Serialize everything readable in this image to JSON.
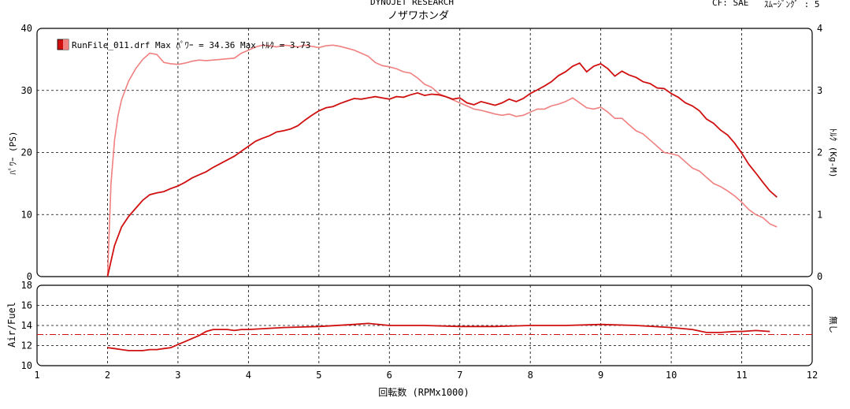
{
  "header": {
    "title": "DYNOJET  RESEARCH",
    "subtitle": "ノザワホンダ",
    "cf": "CF: SAE",
    "smoothing": "ｽﾑｰｼﾞﾝｸﾞ : 5"
  },
  "colors": {
    "power": "#d01010",
    "torque": "#f08080",
    "afr": "#d01010",
    "afr_ref": "#d01010",
    "frame": "#000000",
    "grid": "#000000"
  },
  "chart_data": [
    {
      "type": "line",
      "legend": "RunFile_011.drf Max ﾊﾟﾜｰ = 34.36  Max ﾄﾙｸ = 3.73",
      "xlabel": "回転数 (RPMx1000)",
      "ylabel": "ﾊﾟﾜｰ (PS)",
      "y2label": "ﾄﾙｸ (Kg-M)",
      "xlim": [
        1,
        12
      ],
      "ylim": [
        0,
        40
      ],
      "y2lim": [
        0,
        4
      ],
      "yticks": [
        "0",
        "10",
        "20",
        "30",
        "40"
      ],
      "y2ticks": [
        "0",
        "1",
        "2",
        "3",
        "4"
      ],
      "grid": true,
      "legend_position": "top-left",
      "series": [
        {
          "axis": "left",
          "x": [
            2.0,
            2.05,
            2.1,
            2.2,
            2.3,
            2.4,
            2.5,
            2.6,
            2.7,
            2.8,
            2.9,
            3.0,
            3.1,
            3.2,
            3.3,
            3.4,
            3.5,
            3.6,
            3.7,
            3.8,
            3.9,
            4.0,
            4.1,
            4.2,
            4.3,
            4.4,
            4.5,
            4.6,
            4.7,
            4.8,
            4.9,
            5.0,
            5.1,
            5.2,
            5.3,
            5.4,
            5.5,
            5.6,
            5.7,
            5.8,
            5.9,
            6.0,
            6.1,
            6.2,
            6.3,
            6.4,
            6.5,
            6.6,
            6.7,
            6.8,
            6.9,
            7.0,
            7.1,
            7.2,
            7.3,
            7.4,
            7.5,
            7.6,
            7.7,
            7.8,
            7.9,
            8.0,
            8.1,
            8.2,
            8.3,
            8.4,
            8.5,
            8.6,
            8.7,
            8.8,
            8.9,
            9.0,
            9.1,
            9.2,
            9.3,
            9.4,
            9.5,
            9.6,
            9.7,
            9.8,
            9.9,
            10.0,
            10.1,
            10.2,
            10.3,
            10.4,
            10.5,
            10.6,
            10.7,
            10.8,
            10.9,
            11.0,
            11.1,
            11.2,
            11.3,
            11.4,
            11.5
          ],
          "y": [
            0,
            2.5,
            5.0,
            8.0,
            9.7,
            11.0,
            12.3,
            13.2,
            13.5,
            13.7,
            14.2,
            14.6,
            15.2,
            15.9,
            16.4,
            16.9,
            17.6,
            18.2,
            18.8,
            19.4,
            20.2,
            21.0,
            21.8,
            22.3,
            22.7,
            23.3,
            23.5,
            23.8,
            24.3,
            25.2,
            26.0,
            26.7,
            27.2,
            27.4,
            27.9,
            28.3,
            28.7,
            28.6,
            28.8,
            29.0,
            28.8,
            28.6,
            29.0,
            28.9,
            29.3,
            29.6,
            29.2,
            29.4,
            29.3,
            29.0,
            28.6,
            28.8,
            28.0,
            27.7,
            28.2,
            27.9,
            27.6,
            28.0,
            28.6,
            28.2,
            28.7,
            29.5,
            30.1,
            30.7,
            31.4,
            32.4,
            33.0,
            33.9,
            34.4,
            33.0,
            33.9,
            34.3,
            33.5,
            32.3,
            33.1,
            32.5,
            32.1,
            31.4,
            31.1,
            30.4,
            30.3,
            29.5,
            28.9,
            28.0,
            27.5,
            26.7,
            25.4,
            24.7,
            23.6,
            22.8,
            21.5,
            19.9,
            18.1,
            16.7,
            15.2,
            13.8,
            12.8
          ]
        },
        {
          "axis": "right",
          "x": [
            2.0,
            2.05,
            2.1,
            2.15,
            2.2,
            2.3,
            2.4,
            2.5,
            2.6,
            2.7,
            2.8,
            2.9,
            3.0,
            3.1,
            3.2,
            3.3,
            3.4,
            3.5,
            3.6,
            3.7,
            3.8,
            3.9,
            4.0,
            4.1,
            4.2,
            4.3,
            4.4,
            4.5,
            4.6,
            4.7,
            4.8,
            4.9,
            5.0,
            5.1,
            5.2,
            5.3,
            5.4,
            5.5,
            5.6,
            5.7,
            5.8,
            5.9,
            6.0,
            6.1,
            6.2,
            6.3,
            6.4,
            6.5,
            6.6,
            6.7,
            6.8,
            6.9,
            7.0,
            7.1,
            7.2,
            7.3,
            7.4,
            7.5,
            7.6,
            7.7,
            7.8,
            7.9,
            8.0,
            8.1,
            8.2,
            8.3,
            8.4,
            8.5,
            8.6,
            8.7,
            8.8,
            8.9,
            9.0,
            9.1,
            9.2,
            9.3,
            9.4,
            9.5,
            9.6,
            9.7,
            9.8,
            9.9,
            10.0,
            10.1,
            10.2,
            10.3,
            10.4,
            10.5,
            10.6,
            10.7,
            10.8,
            10.9,
            11.0,
            11.1,
            11.2,
            11.3,
            11.4,
            11.5
          ],
          "y": [
            0,
            1.5,
            2.2,
            2.6,
            2.85,
            3.15,
            3.35,
            3.5,
            3.6,
            3.58,
            3.45,
            3.43,
            3.42,
            3.44,
            3.47,
            3.49,
            3.48,
            3.49,
            3.5,
            3.51,
            3.52,
            3.6,
            3.65,
            3.7,
            3.73,
            3.72,
            3.7,
            3.73,
            3.72,
            3.7,
            3.73,
            3.71,
            3.69,
            3.72,
            3.73,
            3.71,
            3.68,
            3.65,
            3.6,
            3.55,
            3.45,
            3.4,
            3.38,
            3.35,
            3.3,
            3.28,
            3.2,
            3.1,
            3.05,
            2.95,
            2.9,
            2.85,
            2.8,
            2.75,
            2.7,
            2.68,
            2.65,
            2.62,
            2.6,
            2.62,
            2.58,
            2.6,
            2.65,
            2.7,
            2.7,
            2.75,
            2.78,
            2.82,
            2.88,
            2.8,
            2.72,
            2.7,
            2.73,
            2.65,
            2.55,
            2.55,
            2.45,
            2.35,
            2.3,
            2.2,
            2.1,
            2.0,
            1.98,
            1.95,
            1.85,
            1.75,
            1.7,
            1.6,
            1.5,
            1.45,
            1.38,
            1.3,
            1.2,
            1.08,
            1.0,
            0.95,
            0.85,
            0.8
          ]
        }
      ]
    },
    {
      "type": "line",
      "ylabel": "Air/Fuel",
      "y2label": "無し",
      "xlabel": "回転数 (RPMx1000)",
      "xlim": [
        1,
        12
      ],
      "ylim": [
        10,
        18
      ],
      "yticks": [
        "10",
        "12",
        "14",
        "16",
        "18"
      ],
      "xticks": [
        "1",
        "2",
        "3",
        "4",
        "5",
        "6",
        "7",
        "8",
        "9",
        "10",
        "11",
        "12"
      ],
      "grid": true,
      "reference_line": 13.1,
      "series": [
        {
          "x": [
            2.0,
            2.1,
            2.2,
            2.3,
            2.4,
            2.5,
            2.6,
            2.7,
            2.8,
            2.9,
            3.0,
            3.1,
            3.2,
            3.3,
            3.4,
            3.5,
            3.6,
            3.7,
            3.8,
            3.9,
            4.0,
            4.5,
            5.0,
            5.5,
            5.7,
            6.0,
            6.5,
            7.0,
            7.5,
            8.0,
            8.5,
            9.0,
            9.5,
            10.0,
            10.3,
            10.5,
            10.7,
            10.9,
            11.0,
            11.2,
            11.4
          ],
          "y": [
            11.8,
            11.7,
            11.6,
            11.5,
            11.5,
            11.5,
            11.6,
            11.6,
            11.7,
            11.8,
            12.1,
            12.4,
            12.7,
            13.0,
            13.4,
            13.6,
            13.6,
            13.6,
            13.5,
            13.6,
            13.6,
            13.8,
            13.9,
            14.1,
            14.2,
            14.0,
            14.0,
            13.9,
            13.9,
            14.0,
            14.0,
            14.1,
            14.0,
            13.8,
            13.6,
            13.3,
            13.3,
            13.4,
            13.4,
            13.5,
            13.4
          ]
        }
      ]
    }
  ]
}
